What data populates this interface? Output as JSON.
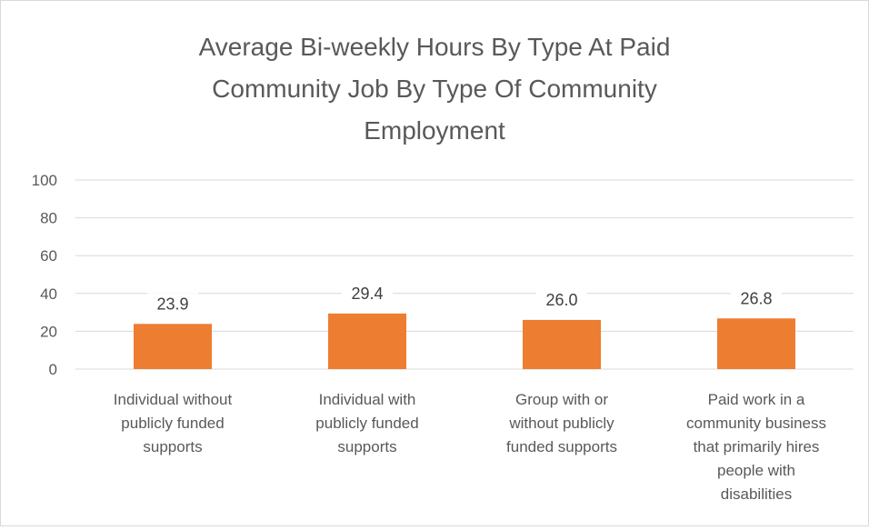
{
  "chart_data": {
    "type": "bar",
    "title_lines": [
      "Average Bi-weekly Hours By Type At Paid",
      "Community Job By Type Of Community",
      "Employment"
    ],
    "categories": [
      [
        "Individual without",
        "publicly funded",
        "supports"
      ],
      [
        "Individual with",
        "publicly funded",
        "supports"
      ],
      [
        "Group with or",
        "without publicly",
        "funded supports"
      ],
      [
        "Paid work in a",
        "community business",
        "that primarily hires",
        "people with",
        "disabilities"
      ]
    ],
    "values": [
      23.9,
      29.4,
      26.0,
      26.8
    ],
    "data_labels": [
      "23.9",
      "29.4",
      "26.0",
      "26.8"
    ],
    "ylim": [
      0,
      100
    ],
    "yticks": [
      0,
      20,
      40,
      60,
      80,
      100
    ],
    "ytick_labels": [
      "0",
      "20",
      "40",
      "60",
      "80",
      "100"
    ],
    "grid": true,
    "legend": "none",
    "bar_color": "#ED7D31",
    "grid_color": "#d9d9d9",
    "text_color": "#595959"
  }
}
